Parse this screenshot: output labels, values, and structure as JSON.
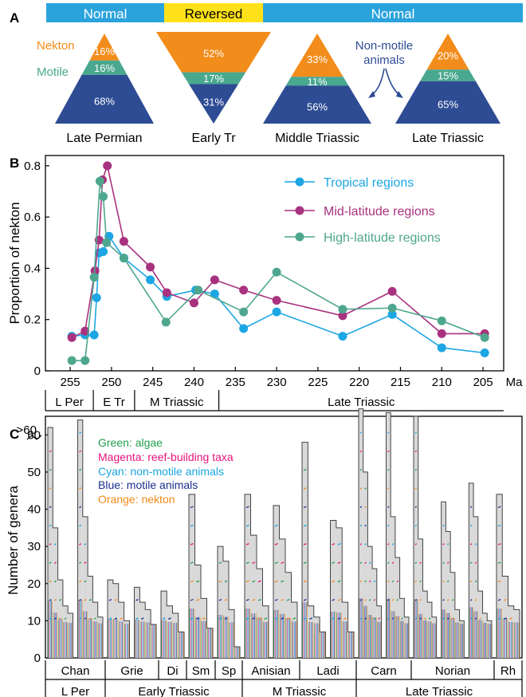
{
  "colors": {
    "nekton": "#F28C1B",
    "motile": "#4AA88E",
    "nonmotile": "#2E4C94",
    "normal": "#2AA3DC",
    "reversed": "#FFE11A",
    "tropical": "#1CA6E3",
    "mid": "#A8327F",
    "high": "#4FA68E",
    "algae": "#1E9F4C",
    "reef": "#E8127C",
    "cyan": "#1BA6E1",
    "blue": "#1C2F8C",
    "orange": "#F08A1A"
  },
  "panel_labels": {
    "a": "A",
    "b": "B",
    "c": "C"
  },
  "polarity": [
    {
      "label": "Normal",
      "kind": "normal"
    },
    {
      "label": "Reversed",
      "kind": "reversed"
    },
    {
      "label": "Normal",
      "kind": "normal"
    }
  ],
  "pyramids": [
    {
      "name": "Late Permian",
      "nekton": "16%",
      "motile": "16%",
      "nonmotile": "68%",
      "inverted": false
    },
    {
      "name": "Early Tr",
      "nekton": "52%",
      "motile": "17%",
      "nonmotile": "31%",
      "inverted": true
    },
    {
      "name": "Middle Triassic",
      "nekton": "33%",
      "motile": "11%",
      "nonmotile": "56%",
      "inverted": false
    },
    {
      "name": "Late Triassic",
      "nekton": "20%",
      "motile": "15%",
      "nonmotile": "65%",
      "inverted": false
    }
  ],
  "legend_a": {
    "nekton": "Nekton",
    "motile": "Motile",
    "nonmotile": "Non-motile animals"
  },
  "chart_data": [
    {
      "type": "line",
      "ylabel": "Proportion of nekton",
      "xlabel": "Ma",
      "xlim": [
        258,
        202.5
      ],
      "ylim": [
        0,
        0.84
      ],
      "xticks": [
        255,
        250,
        245,
        240,
        235,
        230,
        225,
        220,
        215,
        210,
        205
      ],
      "yticks": [
        0,
        0.2,
        0.4,
        0.6,
        0.8
      ],
      "ytick_labels": [
        "0",
        "0.2",
        "0.4",
        "0.6",
        "0.8"
      ],
      "periods": [
        {
          "label": "L Per",
          "from": 258,
          "to": 252.2
        },
        {
          "label": "E Tr",
          "from": 252.2,
          "to": 247.2
        },
        {
          "label": "M Triassic",
          "from": 247.2,
          "to": 237
        },
        {
          "label": "Late Triassic",
          "from": 237,
          "to": 202.5
        }
      ],
      "series": [
        {
          "name": "Tropical regions",
          "color_key": "tropical",
          "x": [
            254.8,
            253.2,
            252.1,
            251.8,
            251.5,
            251.0,
            250.3,
            248.5,
            245.3,
            243.3,
            239.8,
            237.5,
            234.0,
            230.0,
            222.0,
            216.0,
            210.0,
            204.8
          ],
          "y": [
            0.135,
            0.14,
            0.14,
            0.285,
            0.46,
            0.465,
            0.525,
            0.44,
            0.355,
            0.29,
            0.315,
            0.3,
            0.165,
            0.23,
            0.135,
            0.22,
            0.09,
            0.07
          ]
        },
        {
          "name": "Mid-latitude regions",
          "color_key": "mid",
          "x": [
            254.8,
            253.2,
            252.0,
            251.5,
            251.1,
            250.5,
            248.5,
            245.3,
            243.3,
            240.0,
            237.5,
            234.0,
            230.0,
            222.0,
            216.0,
            210.0,
            204.8
          ],
          "y": [
            0.13,
            0.155,
            0.39,
            0.51,
            0.745,
            0.8,
            0.505,
            0.405,
            0.305,
            0.265,
            0.355,
            0.315,
            0.275,
            0.215,
            0.31,
            0.145,
            0.145
          ]
        },
        {
          "name": "High-latitude regions",
          "color_key": "high",
          "x": [
            254.8,
            253.2,
            252.1,
            251.4,
            251.0,
            250.6,
            248.5,
            243.4,
            239.5,
            234.0,
            230.0,
            222.0,
            216.0,
            210.0,
            204.8
          ],
          "y": [
            0.04,
            0.04,
            0.365,
            0.74,
            0.68,
            0.5,
            0.44,
            0.19,
            0.315,
            0.23,
            0.385,
            0.24,
            0.245,
            0.195,
            0.13
          ]
        }
      ]
    },
    {
      "type": "bar",
      "ylabel": "Number of genera",
      "ylim": [
        0,
        65
      ],
      "yticks": [
        0,
        10,
        20,
        30,
        40,
        50,
        60
      ],
      "break_label": ">60",
      "legend": [
        {
          "label": "Green: algae",
          "color_key": "algae"
        },
        {
          "label": "Magenta: reef-building taxa",
          "color_key": "reef"
        },
        {
          "label": "Cyan: non-motile animals",
          "color_key": "cyan"
        },
        {
          "label": "Blue: motile animals",
          "color_key": "blue"
        },
        {
          "label": "Orange: nekton",
          "color_key": "orange"
        }
      ],
      "stages": [
        {
          "label": "Chan",
          "groups": [
            [
              62,
              35,
              21,
              14,
              12
            ],
            [
              64,
              38,
              22,
              15,
              11
            ]
          ]
        },
        {
          "label": "Grie",
          "groups": [
            [
              21,
              20,
              15,
              10
            ],
            [
              19,
              15,
              13,
              9
            ]
          ]
        },
        {
          "label": "Di",
          "groups": [
            [
              18,
              14,
              12,
              7
            ]
          ]
        },
        {
          "label": "Sm",
          "groups": [
            [
              44,
              25,
              16,
              8
            ]
          ]
        },
        {
          "label": "Sp",
          "groups": [
            [
              30,
              26,
              13,
              3
            ]
          ]
        },
        {
          "label": "Anisian",
          "groups": [
            [
              44,
              33,
              24,
              14
            ],
            [
              41,
              32,
              23,
              15
            ]
          ]
        },
        {
          "label": "Ladi",
          "groups": [
            [
              58,
              14,
              11,
              7
            ],
            [
              37,
              35,
              15,
              7
            ]
          ]
        },
        {
          "label": "Carn",
          "groups": [
            [
              67,
              50,
              30,
              24,
              14
            ],
            [
              66,
              38,
              27,
              16,
              11
            ]
          ]
        },
        {
          "label": "Norian",
          "groups": [
            [
              65,
              32,
              18,
              15,
              11
            ],
            [
              42,
              34,
              23,
              13,
              10
            ],
            [
              47,
              38,
              18,
              12,
              10
            ]
          ]
        },
        {
          "label": "Rh",
          "groups": [
            [
              44,
              22,
              14,
              13
            ]
          ]
        }
      ],
      "eras": [
        {
          "label": "L Per"
        },
        {
          "label": "Early Triassic"
        },
        {
          "label": "M Triassic"
        },
        {
          "label": "Late Triassic"
        }
      ]
    }
  ]
}
